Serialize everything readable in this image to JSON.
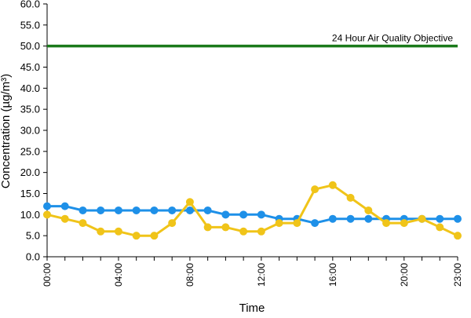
{
  "chart_data": {
    "type": "line",
    "title": "",
    "xlabel": "Time",
    "ylabel": "Concentration (µg/m³)",
    "ylim": [
      0,
      60
    ],
    "y_ticks": [
      "0.0",
      "5.0",
      "10.0",
      "15.0",
      "20.0",
      "25.0",
      "30.0",
      "35.0",
      "40.0",
      "45.0",
      "50.0",
      "55.0",
      "60.0"
    ],
    "x": [
      "00:00",
      "01:00",
      "02:00",
      "03:00",
      "04:00",
      "05:00",
      "06:00",
      "07:00",
      "08:00",
      "09:00",
      "10:00",
      "11:00",
      "12:00",
      "13:00",
      "14:00",
      "15:00",
      "16:00",
      "17:00",
      "18:00",
      "19:00",
      "20:00",
      "21:00",
      "22:00",
      "23:00"
    ],
    "x_tick_labels": [
      "00:00",
      "04:00",
      "08:00",
      "12:00",
      "16:00",
      "20:00",
      "23:00"
    ],
    "series": [
      {
        "color": "#1e90e8",
        "values": [
          12,
          12,
          11,
          11,
          11,
          11,
          11,
          11,
          11,
          11,
          10,
          10,
          10,
          9,
          9,
          8,
          9,
          9,
          9,
          9,
          9,
          9,
          9,
          9
        ]
      },
      {
        "color": "#f0c419",
        "values": [
          10,
          9,
          8,
          6,
          6,
          5,
          5,
          8,
          13,
          7,
          7,
          6,
          6,
          8,
          8,
          16,
          17,
          14,
          11,
          8,
          8,
          9,
          7,
          5
        ]
      }
    ],
    "reference_line": {
      "value": 50,
      "label": "24 Hour Air Quality Objective",
      "color": "#1a7a1a"
    },
    "grid": false,
    "legend": "none"
  }
}
